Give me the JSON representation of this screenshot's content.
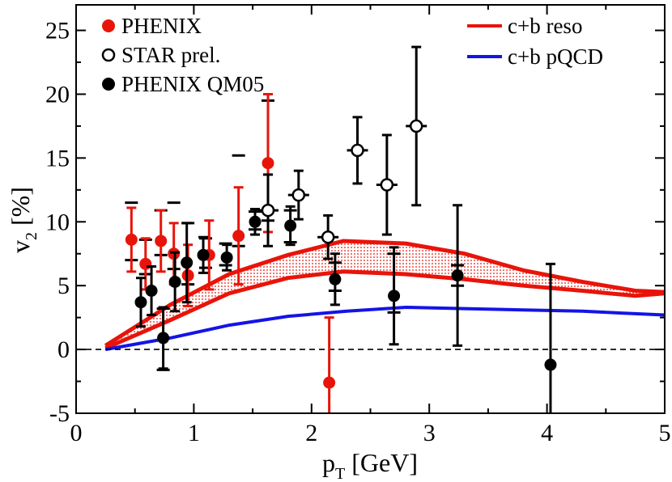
{
  "chart_data": {
    "type": "scatter",
    "xlabel_main": "p",
    "xlabel_sub": "T",
    "xlabel_rest": " [GeV]",
    "ylabel_main": "v",
    "ylabel_sub": "2",
    "ylabel_rest": " [%]",
    "xlim": [
      0,
      5
    ],
    "ylim": [
      -5,
      27
    ],
    "x_ticks": [
      "0",
      "1",
      "2",
      "3",
      "4",
      "5"
    ],
    "y_ticks": [
      "-5",
      "0",
      "5",
      "10",
      "15",
      "20",
      "25"
    ],
    "reference_line": {
      "y": 0,
      "style": "dashed"
    },
    "legend_left": [
      {
        "label": "PHENIX",
        "marker": "filled-circle",
        "color": "#e8140a"
      },
      {
        "label": "STAR prel.",
        "marker": "open-circle",
        "color": "#000000"
      },
      {
        "label": "PHENIX QM05",
        "marker": "filled-circle",
        "color": "#000000"
      }
    ],
    "legend_right": [
      {
        "label": "c+b reso",
        "color": "#e8140a"
      },
      {
        "label": "c+b pQCD",
        "color": "#1414e6"
      }
    ],
    "series": [
      {
        "name": "PHENIX",
        "marker": "filled-circle",
        "color": "#e8140a",
        "points": [
          {
            "x": 0.47,
            "y": 8.6,
            "err": 2.5
          },
          {
            "x": 0.59,
            "y": 6.7,
            "err": 2.0
          },
          {
            "x": 0.72,
            "y": 8.5,
            "err": 2.4
          },
          {
            "x": 0.83,
            "y": 7.5,
            "err": 2.4
          },
          {
            "x": 0.95,
            "y": 5.8,
            "err": 2.4
          },
          {
            "x": 1.13,
            "y": 7.4,
            "err": 2.7
          },
          {
            "x": 1.38,
            "y": 8.9,
            "err": 3.8
          },
          {
            "x": 1.63,
            "y": 14.6,
            "err": 5.4
          },
          {
            "x": 2.15,
            "y": -2.6,
            "err": 5.1
          }
        ]
      },
      {
        "name": "STAR prel.",
        "marker": "open-circle",
        "color": "#000000",
        "points": [
          {
            "x": 1.63,
            "y": 10.9,
            "err": 2.8
          },
          {
            "x": 1.89,
            "y": 12.1,
            "err": 1.9
          },
          {
            "x": 2.14,
            "y": 8.8,
            "err": 1.7
          },
          {
            "x": 2.39,
            "y": 15.6,
            "err": 2.6
          },
          {
            "x": 2.64,
            "y": 12.9,
            "err": 3.9
          },
          {
            "x": 2.89,
            "y": 17.5,
            "err": 6.2
          }
        ]
      },
      {
        "name": "PHENIX QM05",
        "marker": "filled-circle",
        "color": "#000000",
        "points": [
          {
            "x": 0.55,
            "y": 3.7,
            "err": 1.9
          },
          {
            "x": 0.64,
            "y": 4.6,
            "err": 1.9
          },
          {
            "x": 0.74,
            "y": 0.9,
            "err": 2.4
          },
          {
            "x": 0.84,
            "y": 5.3,
            "err": 2.3
          },
          {
            "x": 0.94,
            "y": 6.8,
            "err": 3.1
          },
          {
            "x": 1.08,
            "y": 7.4,
            "err": 1.4
          },
          {
            "x": 1.28,
            "y": 7.2,
            "err": 1.0
          },
          {
            "x": 1.52,
            "y": 10.0,
            "err": 1.0
          },
          {
            "x": 1.82,
            "y": 9.7,
            "err": 1.5
          },
          {
            "x": 2.2,
            "y": 5.5,
            "err": 2.0
          },
          {
            "x": 2.7,
            "y": 4.2,
            "err": 3.8
          },
          {
            "x": 3.24,
            "y": 5.8,
            "err": 5.5
          },
          {
            "x": 4.03,
            "y": -1.2,
            "err": 7.9
          }
        ]
      }
    ],
    "sys_brackets": {
      "color": "#000000",
      "points": [
        {
          "x": 0.47,
          "lo": 7.0,
          "hi": 11.5
        },
        {
          "x": 0.59,
          "lo": 5.9,
          "hi": 8.6
        },
        {
          "x": 0.72,
          "lo": 7.4,
          "hi": 10.9
        },
        {
          "x": 0.83,
          "lo": 6.3,
          "hi": 11.5
        },
        {
          "x": 0.95,
          "lo": 5.1,
          "hi": 9.9
        },
        {
          "x": 1.1,
          "lo": 6.4,
          "hi": 8.7
        },
        {
          "x": 1.27,
          "lo": 6.6,
          "hi": 8.3
        },
        {
          "x": 1.38,
          "lo": 8.1,
          "hi": 15.2
        },
        {
          "x": 1.52,
          "lo": 9.4,
          "hi": 10.8
        },
        {
          "x": 1.63,
          "lo": 10.1,
          "hi": 19.5
        },
        {
          "x": 1.82,
          "lo": 8.4,
          "hi": 10.9
        },
        {
          "x": 2.2,
          "lo": 4.6,
          "hi": 6.8
        },
        {
          "x": 2.7,
          "lo": 2.9,
          "hi": 7.5
        },
        {
          "x": 3.24,
          "lo": 5.0,
          "hi": 6.6
        },
        {
          "x": 0.74,
          "lo": -1.6,
          "hi": 3.2
        }
      ]
    },
    "bands": {
      "reso_upper": [
        [
          0.25,
          0.3
        ],
        [
          0.8,
          3.5
        ],
        [
          1.3,
          5.9
        ],
        [
          1.8,
          7.4
        ],
        [
          2.27,
          8.5
        ],
        [
          2.8,
          8.3
        ],
        [
          3.3,
          7.5
        ],
        [
          3.8,
          6.2
        ],
        [
          4.3,
          5.3
        ],
        [
          4.75,
          4.6
        ],
        [
          5.0,
          4.5
        ]
      ],
      "reso_lower": [
        [
          0.25,
          0.1
        ],
        [
          0.8,
          2.3
        ],
        [
          1.3,
          4.4
        ],
        [
          1.8,
          5.6
        ],
        [
          2.27,
          6.1
        ],
        [
          2.8,
          5.9
        ],
        [
          3.3,
          5.5
        ],
        [
          3.8,
          5.0
        ],
        [
          4.3,
          4.6
        ],
        [
          4.75,
          4.2
        ],
        [
          5.0,
          4.4
        ]
      ],
      "pqcd": [
        [
          0.25,
          0.0
        ],
        [
          0.8,
          0.9
        ],
        [
          1.3,
          1.9
        ],
        [
          1.8,
          2.6
        ],
        [
          2.3,
          3.0
        ],
        [
          2.8,
          3.3
        ],
        [
          3.3,
          3.2
        ],
        [
          3.8,
          3.1
        ],
        [
          4.3,
          3.0
        ],
        [
          4.75,
          2.8
        ],
        [
          5.0,
          2.7
        ]
      ]
    }
  }
}
